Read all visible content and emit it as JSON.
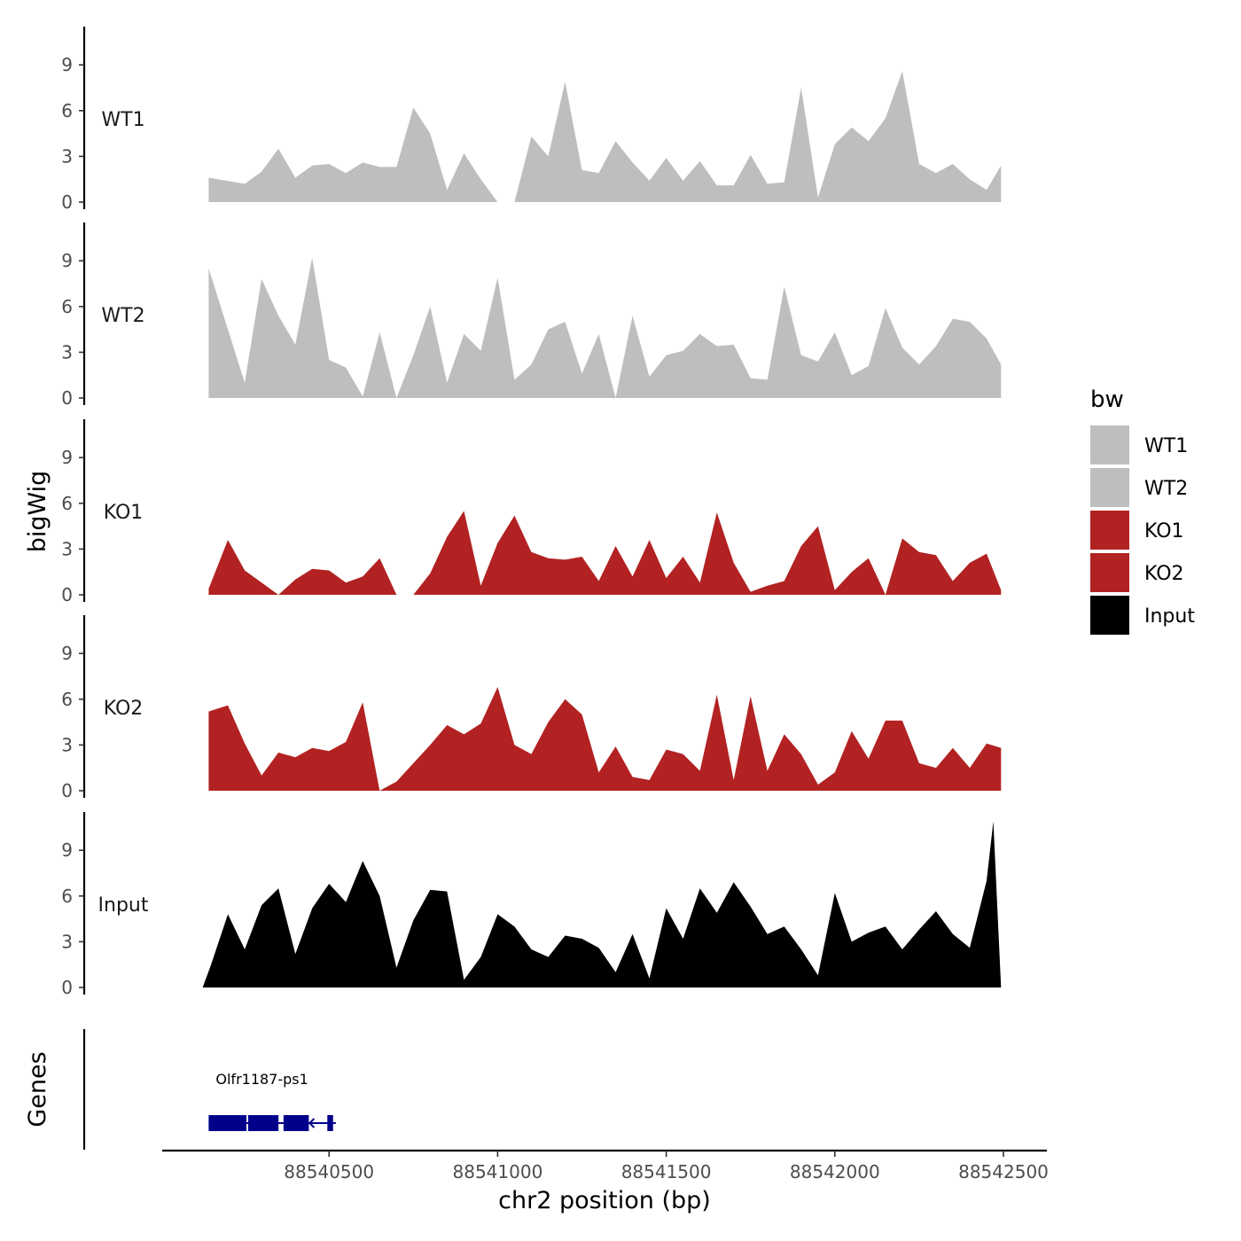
{
  "chart_data": {
    "type": "area",
    "ylabel": "bigWig",
    "xlabel": "chr2 position (bp)",
    "xlim": [
      88540000,
      88542500
    ],
    "ylim": [
      0,
      11.5
    ],
    "yticks": [
      0,
      3,
      6,
      9
    ],
    "xticks": [
      88540500,
      88541000,
      88541500,
      88542000,
      88542500
    ],
    "xtick_labels": [
      "88540500",
      "88541000",
      "88541500",
      "88542000",
      "88542500"
    ],
    "legend": {
      "title": "bw",
      "position": "right",
      "entries": [
        {
          "label": "WT1",
          "color": "#bebebe"
        },
        {
          "label": "WT2",
          "color": "#bebebe"
        },
        {
          "label": "KO1",
          "color": "#b22222"
        },
        {
          "label": "KO2",
          "color": "#b22222"
        },
        {
          "label": "Input",
          "color": "#000000"
        }
      ]
    },
    "series": [
      {
        "name": "WT1",
        "color": "#bebebe",
        "x": [
          88540143,
          88540250,
          88540300,
          88540350,
          88540400,
          88540450,
          88540500,
          88540550,
          88540600,
          88540650,
          88540700,
          88540750,
          88540800,
          88540850,
          88540900,
          88540950,
          88541000,
          88541050,
          88541100,
          88541150,
          88541200,
          88541250,
          88541300,
          88541350,
          88541400,
          88541450,
          88541500,
          88541550,
          88541600,
          88541650,
          88541700,
          88541750,
          88541800,
          88541850,
          88541900,
          88541950,
          88542000,
          88542050,
          88542100,
          88542150,
          88542200,
          88542250,
          88542300,
          88542350,
          88542400,
          88542450,
          88542493
        ],
        "y": [
          1.6,
          1.2,
          2.0,
          3.5,
          1.6,
          2.4,
          2.5,
          1.9,
          2.6,
          2.3,
          2.3,
          6.2,
          4.5,
          0.8,
          3.2,
          1.5,
          0.0,
          0.0,
          4.3,
          3.0,
          7.9,
          2.1,
          1.9,
          4.0,
          2.6,
          1.4,
          2.9,
          1.4,
          2.7,
          1.1,
          1.1,
          3.1,
          1.2,
          1.3,
          7.5,
          0.3,
          3.8,
          4.9,
          4.0,
          5.5,
          8.6,
          2.5,
          1.9,
          2.5,
          1.5,
          0.8,
          2.4
        ]
      },
      {
        "name": "WT2",
        "color": "#bebebe",
        "x": [
          88540143,
          88540200,
          88540250,
          88540300,
          88540350,
          88540400,
          88540450,
          88540500,
          88540550,
          88540600,
          88540650,
          88540700,
          88540750,
          88540800,
          88540850,
          88540900,
          88540950,
          88541000,
          88541050,
          88541100,
          88541150,
          88541200,
          88541250,
          88541300,
          88541350,
          88541400,
          88541450,
          88541500,
          88541550,
          88541600,
          88541650,
          88541700,
          88541750,
          88541800,
          88541850,
          88541900,
          88541950,
          88542000,
          88542050,
          88542100,
          88542150,
          88542200,
          88542250,
          88542300,
          88542350,
          88542400,
          88542450,
          88542493
        ],
        "y": [
          8.5,
          4.5,
          1.0,
          7.8,
          5.4,
          3.5,
          9.2,
          2.5,
          2.0,
          0.1,
          4.3,
          0.0,
          2.8,
          6.0,
          1.0,
          4.2,
          3.1,
          7.9,
          1.2,
          2.2,
          4.5,
          5.0,
          1.6,
          4.2,
          0.0,
          5.4,
          1.4,
          2.8,
          3.1,
          4.2,
          3.4,
          3.5,
          1.3,
          1.2,
          7.3,
          2.8,
          2.4,
          4.3,
          1.5,
          2.1,
          5.9,
          3.3,
          2.2,
          3.4,
          5.2,
          5.0,
          3.9,
          2.2
        ]
      },
      {
        "name": "KO1",
        "color": "#b22222",
        "x": [
          88540143,
          88540200,
          88540250,
          88540300,
          88540350,
          88540400,
          88540450,
          88540500,
          88540550,
          88540600,
          88540650,
          88540700,
          88540750,
          88540800,
          88540850,
          88540900,
          88540950,
          88541000,
          88541050,
          88541100,
          88541150,
          88541200,
          88541250,
          88541300,
          88541350,
          88541400,
          88541450,
          88541500,
          88541550,
          88541600,
          88541650,
          88541700,
          88541750,
          88541800,
          88541850,
          88541900,
          88541950,
          88542000,
          88542050,
          88542100,
          88542150,
          88542200,
          88542250,
          88542300,
          88542350,
          88542400,
          88542450,
          88542493
        ],
        "y": [
          0.4,
          3.6,
          1.6,
          0.8,
          0.0,
          1.0,
          1.7,
          1.6,
          0.8,
          1.2,
          2.4,
          0.0,
          0.0,
          1.4,
          3.8,
          5.5,
          0.6,
          3.4,
          5.2,
          2.8,
          2.4,
          2.3,
          2.5,
          0.9,
          3.2,
          1.2,
          3.6,
          1.1,
          2.5,
          0.8,
          5.4,
          2.1,
          0.2,
          0.6,
          0.9,
          3.2,
          4.5,
          0.3,
          1.5,
          2.4,
          0.0,
          3.7,
          2.8,
          2.6,
          0.9,
          2.1,
          2.7,
          0.3
        ]
      },
      {
        "name": "KO2",
        "color": "#b22222",
        "x": [
          88540143,
          88540200,
          88540250,
          88540300,
          88540350,
          88540400,
          88540450,
          88540500,
          88540550,
          88540600,
          88540650,
          88540700,
          88540750,
          88540800,
          88540850,
          88540900,
          88540950,
          88541000,
          88541050,
          88541100,
          88541150,
          88541200,
          88541250,
          88541300,
          88541350,
          88541400,
          88541450,
          88541500,
          88541550,
          88541600,
          88541650,
          88541700,
          88541750,
          88541800,
          88541850,
          88541900,
          88541950,
          88542000,
          88542050,
          88542100,
          88542150,
          88542200,
          88542250,
          88542300,
          88542350,
          88542400,
          88542450,
          88542493
        ],
        "y": [
          5.2,
          5.6,
          3.1,
          1.0,
          2.5,
          2.2,
          2.8,
          2.6,
          3.2,
          5.8,
          0.0,
          0.6,
          1.8,
          3.0,
          4.3,
          3.7,
          4.4,
          6.8,
          3.0,
          2.4,
          4.5,
          6.0,
          5.0,
          1.2,
          2.9,
          0.9,
          0.7,
          2.7,
          2.4,
          1.3,
          6.3,
          0.7,
          6.2,
          1.3,
          3.7,
          2.4,
          0.4,
          1.2,
          3.9,
          2.1,
          4.6,
          4.6,
          1.8,
          1.5,
          2.8,
          1.5,
          3.1,
          2.8
        ]
      },
      {
        "name": "Input",
        "color": "#000000",
        "x": [
          88540125,
          88540150,
          88540200,
          88540250,
          88540300,
          88540350,
          88540400,
          88540450,
          88540500,
          88540550,
          88540600,
          88540650,
          88540700,
          88540750,
          88540800,
          88540850,
          88540900,
          88540950,
          88541000,
          88541050,
          88541100,
          88541150,
          88541200,
          88541250,
          88541300,
          88541350,
          88541400,
          88541450,
          88541500,
          88541550,
          88541600,
          88541650,
          88541700,
          88541750,
          88541800,
          88541850,
          88541900,
          88541950,
          88542000,
          88542050,
          88542100,
          88542150,
          88542200,
          88542250,
          88542300,
          88542350,
          88542400,
          88542450,
          88542470,
          88542493
        ],
        "y": [
          0.0,
          1.5,
          4.8,
          2.5,
          5.4,
          6.5,
          2.2,
          5.2,
          6.8,
          5.6,
          8.3,
          6.0,
          1.3,
          4.4,
          6.4,
          6.3,
          0.5,
          2.0,
          4.8,
          4.0,
          2.5,
          2.0,
          3.4,
          3.2,
          2.6,
          1.0,
          3.5,
          0.6,
          5.2,
          3.2,
          6.5,
          4.9,
          6.9,
          5.3,
          3.5,
          4.0,
          2.5,
          0.8,
          6.2,
          3.0,
          3.6,
          4.0,
          2.5,
          3.8,
          5.0,
          3.5,
          2.6,
          7.0,
          10.9,
          0.0
        ]
      }
    ],
    "genes": {
      "track_label": "Genes",
      "items": [
        {
          "name": "Olfr1187-ps1",
          "start": 88540143,
          "end": 88540520,
          "strand": "-",
          "color": "#00008b",
          "exons": [
            [
              88540143,
              88540255
            ],
            [
              88540260,
              88540350
            ],
            [
              88540365,
              88540440
            ],
            [
              88540495,
              88540512
            ]
          ]
        }
      ]
    }
  }
}
